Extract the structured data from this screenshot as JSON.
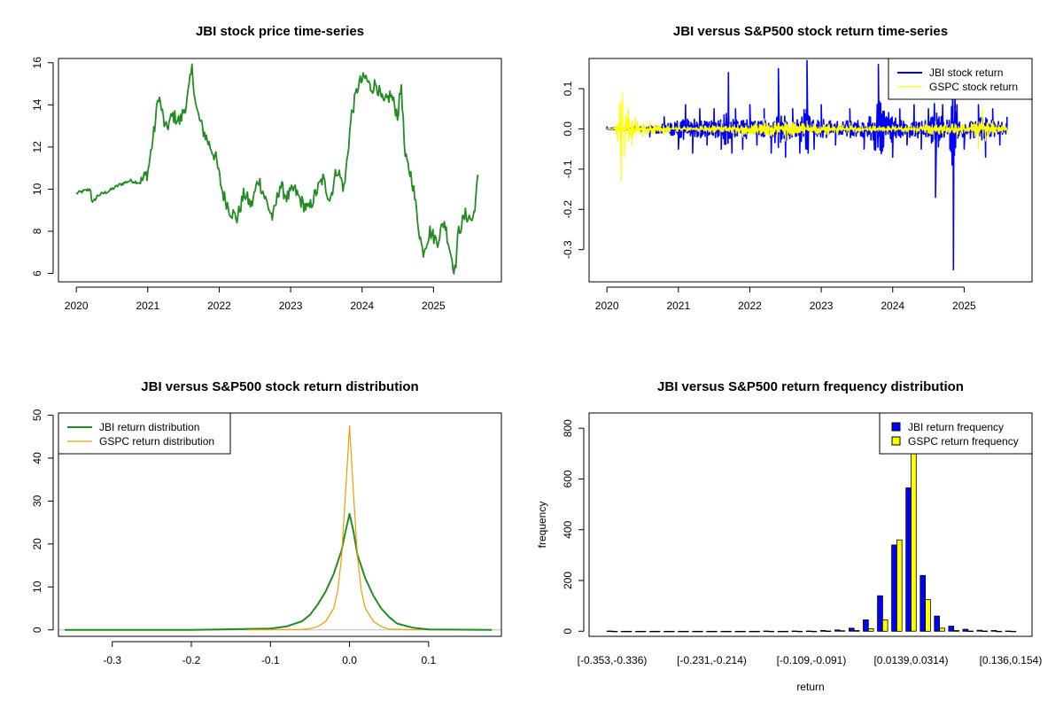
{
  "colors": {
    "green": "#228B22",
    "blue": "#0000FF",
    "yellow": "#FFFF00",
    "orange": "#E69F00",
    "black": "#000000"
  },
  "chart_data": [
    {
      "id": "price",
      "type": "line",
      "title": "JBI stock price time-series",
      "xlabel": "",
      "ylabel": "",
      "xlim": [
        2019.75,
        2025.95
      ],
      "ylim": [
        5.6,
        16.2
      ],
      "x_ticks": [
        2020,
        2021,
        2022,
        2023,
        2024,
        2025
      ],
      "x_tick_labels": [
        "2020",
        "2021",
        "2022",
        "2023",
        "2024",
        "2025"
      ],
      "y_ticks": [
        6,
        8,
        10,
        12,
        14,
        16
      ],
      "y_tick_labels": [
        "6",
        "8",
        "10",
        "12",
        "14",
        "16"
      ],
      "series": [
        {
          "name": "JBI",
          "color": "green",
          "x": [
            2020.0,
            2020.1,
            2020.2,
            2020.22,
            2020.3,
            2020.45,
            2020.6,
            2020.75,
            2020.9,
            2021.0,
            2021.1,
            2021.15,
            2021.25,
            2021.35,
            2021.45,
            2021.55,
            2021.62,
            2021.68,
            2021.75,
            2021.85,
            2021.95,
            2022.05,
            2022.15,
            2022.25,
            2022.35,
            2022.45,
            2022.55,
            2022.65,
            2022.75,
            2022.85,
            2022.95,
            2023.05,
            2023.15,
            2023.25,
            2023.35,
            2023.45,
            2023.55,
            2023.65,
            2023.75,
            2023.85,
            2023.95,
            2024.05,
            2024.12,
            2024.2,
            2024.3,
            2024.4,
            2024.5,
            2024.55,
            2024.6,
            2024.7,
            2024.8,
            2024.85,
            2024.95,
            2025.05,
            2025.15,
            2025.25,
            2025.3,
            2025.35,
            2025.45,
            2025.55,
            2025.6,
            2025.62
          ],
          "values": [
            9.8,
            9.9,
            10.0,
            9.3,
            9.7,
            9.9,
            10.2,
            10.4,
            10.3,
            10.8,
            13.0,
            14.5,
            12.8,
            13.5,
            13.2,
            14.2,
            15.7,
            13.8,
            13.0,
            12.2,
            11.5,
            9.8,
            9.0,
            8.6,
            9.8,
            9.2,
            10.5,
            9.5,
            8.6,
            10.2,
            9.6,
            10.0,
            9.4,
            9.0,
            9.8,
            10.5,
            9.5,
            11.0,
            10.0,
            13.5,
            15.0,
            15.3,
            14.8,
            15.0,
            14.0,
            14.5,
            13.5,
            15.0,
            11.5,
            10.5,
            8.0,
            7.0,
            8.0,
            7.5,
            8.5,
            6.8,
            6.1,
            8.0,
            8.8,
            8.5,
            9.8,
            10.5
          ]
        }
      ]
    },
    {
      "id": "returns",
      "type": "line",
      "title": "JBI versus S&P500 stock return time-series",
      "xlabel": "",
      "ylabel": "",
      "xlim": [
        2019.75,
        2025.95
      ],
      "ylim": [
        -0.38,
        0.175
      ],
      "x_ticks": [
        2020,
        2021,
        2022,
        2023,
        2024,
        2025
      ],
      "x_tick_labels": [
        "2020",
        "2021",
        "2022",
        "2023",
        "2024",
        "2025"
      ],
      "y_ticks": [
        -0.3,
        -0.2,
        -0.1,
        0.0,
        0.1
      ],
      "y_tick_labels": [
        "-0.3",
        "-0.2",
        "-0.1",
        "0.0",
        "0.1"
      ],
      "legend_position": "top-right",
      "series": [
        {
          "name": "JBI stock return",
          "color": "blue",
          "x": [
            2020.0,
            2020.2,
            2020.4,
            2020.6,
            2020.8,
            2021.0,
            2021.1,
            2021.2,
            2021.3,
            2021.4,
            2021.5,
            2021.6,
            2021.7,
            2021.75,
            2021.8,
            2021.9,
            2022.0,
            2022.1,
            2022.2,
            2022.3,
            2022.4,
            2022.5,
            2022.6,
            2022.7,
            2022.8,
            2022.9,
            2023.0,
            2023.2,
            2023.4,
            2023.6,
            2023.8,
            2024.0,
            2024.1,
            2024.2,
            2024.3,
            2024.4,
            2024.5,
            2024.6,
            2024.7,
            2024.8,
            2024.85,
            2024.9,
            2025.0,
            2025.2,
            2025.3,
            2025.4,
            2025.5,
            2025.6
          ],
          "values": [
            0.005,
            -0.01,
            0.01,
            -0.02,
            0.03,
            -0.05,
            0.06,
            -0.06,
            0.05,
            -0.04,
            0.05,
            -0.05,
            0.14,
            -0.06,
            0.05,
            -0.05,
            0.06,
            -0.04,
            0.05,
            -0.06,
            0.15,
            -0.07,
            0.05,
            -0.06,
            0.17,
            -0.05,
            0.06,
            -0.04,
            0.05,
            -0.05,
            0.16,
            -0.07,
            0.05,
            -0.04,
            0.06,
            -0.05,
            0.05,
            -0.17,
            0.06,
            -0.05,
            -0.35,
            0.06,
            -0.05,
            0.06,
            -0.07,
            0.05,
            -0.04,
            0.03
          ]
        },
        {
          "name": "GSPC stock return",
          "color": "yellow",
          "x": [
            2020.0,
            2020.1,
            2020.15,
            2020.18,
            2020.2,
            2020.22,
            2020.25,
            2020.3,
            2020.35,
            2020.4,
            2020.5,
            2020.6,
            2020.8,
            2021.0,
            2021.3,
            2021.6,
            2021.9,
            2022.2,
            2022.5,
            2022.8,
            2023.1,
            2023.4,
            2023.7,
            2024.0,
            2024.3,
            2024.6,
            2024.9,
            2025.1,
            2025.2,
            2025.25,
            2025.3,
            2025.4,
            2025.6
          ],
          "values": [
            0.0,
            0.005,
            -0.03,
            0.06,
            -0.13,
            0.09,
            -0.07,
            0.05,
            -0.04,
            0.03,
            -0.02,
            0.02,
            -0.015,
            0.01,
            -0.01,
            0.015,
            -0.02,
            0.025,
            -0.03,
            0.02,
            -0.02,
            0.015,
            -0.01,
            0.01,
            -0.015,
            0.02,
            -0.02,
            0.015,
            -0.05,
            0.05,
            -0.03,
            0.02,
            -0.01
          ]
        }
      ]
    },
    {
      "id": "density",
      "type": "line",
      "title": "JBI versus S&P500 stock return distribution",
      "xlabel": "",
      "ylabel": "",
      "xlim": [
        -0.368,
        0.192
      ],
      "ylim": [
        -1.5,
        50.5
      ],
      "x_ticks": [
        -0.3,
        -0.2,
        -0.1,
        0.0,
        0.1
      ],
      "x_tick_labels": [
        "-0.3",
        "-0.2",
        "-0.1",
        "0.0",
        "0.1"
      ],
      "y_ticks": [
        0,
        10,
        20,
        30,
        40,
        50
      ],
      "y_tick_labels": [
        "0",
        "10",
        "20",
        "30",
        "40",
        "50"
      ],
      "legend_position": "top-left",
      "series": [
        {
          "name": "JBI return distribution",
          "color": "green",
          "x": [
            -0.36,
            -0.2,
            -0.1,
            -0.08,
            -0.06,
            -0.05,
            -0.04,
            -0.03,
            -0.02,
            -0.01,
            -0.005,
            0.0,
            0.005,
            0.01,
            0.02,
            0.03,
            0.04,
            0.05,
            0.06,
            0.08,
            0.1,
            0.18
          ],
          "values": [
            0.0,
            0.0,
            0.3,
            0.8,
            2.0,
            3.5,
            6.0,
            9.0,
            13.0,
            18.5,
            23.0,
            27.0,
            23.0,
            17.5,
            12.0,
            8.0,
            5.0,
            3.0,
            1.5,
            0.5,
            0.1,
            0.0
          ]
        },
        {
          "name": "GSPC return distribution",
          "color": "orange",
          "x": [
            -0.13,
            -0.06,
            -0.05,
            -0.04,
            -0.03,
            -0.02,
            -0.015,
            -0.01,
            -0.005,
            0.0,
            0.005,
            0.01,
            0.015,
            0.02,
            0.03,
            0.04,
            0.05,
            0.09
          ],
          "values": [
            0.0,
            0.1,
            0.3,
            0.8,
            2.0,
            5.0,
            9.0,
            17.0,
            32.0,
            47.5,
            32.0,
            17.0,
            9.0,
            5.0,
            2.0,
            0.8,
            0.2,
            0.0
          ]
        }
      ]
    },
    {
      "id": "frequency",
      "type": "bar",
      "title": "JBI versus S&P500 return frequency distribution",
      "xlabel": "return",
      "ylabel": "frequency",
      "ylim": [
        -20,
        860
      ],
      "y_ticks": [
        0,
        200,
        400,
        600,
        800
      ],
      "y_tick_labels": [
        "0",
        "200",
        "400",
        "600",
        "800"
      ],
      "categories": [
        "[-0.353,-0.336)",
        "[-0.336,-0.318)",
        "[-0.318,-0.301)",
        "[-0.301,-0.283)",
        "[-0.283,-0.266)",
        "[-0.266,-0.248)",
        "[-0.248,-0.231)",
        "[-0.231,-0.214)",
        "[-0.214,-0.196)",
        "[-0.196,-0.179)",
        "[-0.179,-0.161)",
        "[-0.161,-0.144)",
        "[-0.144,-0.126)",
        "[-0.126,-0.109)",
        "[-0.109,-0.091)",
        "[-0.091,-0.0736)",
        "[-0.0736,-0.0562)",
        "[-0.0562,-0.0388)",
        "[-0.0388,-0.0213)",
        "[-0.0213,-0.00388)",
        "[-0.00388,0.0139)",
        "[0.0139,0.0314)",
        "[0.0314,0.0488)",
        "[0.0488,0.0662)",
        "[0.0662,0.0837)",
        "[0.0837,0.101)",
        "[0.101,0.119)",
        "[0.119,0.136)",
        "[0.136,0.154)"
      ],
      "shown_tick_labels": [
        "[-0.353,-0.336)",
        "[-0.231,-0.214)",
        "[-0.109,-0.091)",
        "[0.0139,0.0314)",
        "[0.136,0.154)"
      ],
      "legend_position": "top-right",
      "series": [
        {
          "name": "JBI return frequency",
          "color": "blue",
          "values": [
            1,
            0,
            0,
            0,
            0,
            0,
            0,
            0,
            0,
            0,
            0,
            1,
            0,
            1,
            1,
            3,
            5,
            12,
            45,
            140,
            340,
            565,
            220,
            60,
            20,
            8,
            4,
            3,
            1
          ]
        },
        {
          "name": "GSPC return frequency",
          "color": "yellow",
          "values": [
            0,
            0,
            0,
            0,
            0,
            0,
            0,
            0,
            0,
            0,
            0,
            0,
            0,
            0,
            0,
            1,
            2,
            3,
            10,
            45,
            360,
            760,
            125,
            12,
            3,
            1,
            1,
            0,
            0
          ]
        }
      ]
    }
  ]
}
